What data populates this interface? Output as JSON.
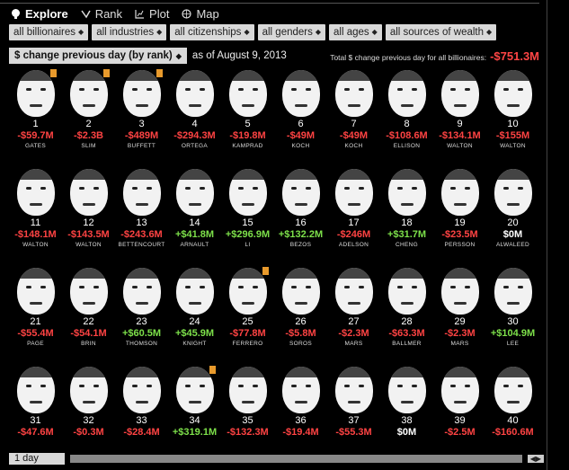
{
  "nav": {
    "items": [
      {
        "label": "Explore",
        "icon": "explore-icon",
        "active": true
      },
      {
        "label": "Rank",
        "icon": "rank-icon",
        "active": false
      },
      {
        "label": "Plot",
        "icon": "plot-icon",
        "active": false
      },
      {
        "label": "Map",
        "icon": "globe-icon",
        "active": false
      }
    ]
  },
  "filters": [
    "all billionaires",
    "all industries",
    "all citizenships",
    "all genders",
    "all ages",
    "all sources of wealth"
  ],
  "sort": {
    "label": "$ change previous day (by rank)",
    "asof": "as of August 9, 2013"
  },
  "total": {
    "label": "Total $ change previous day for all billionaires:",
    "value": "-$751.3M"
  },
  "colors": {
    "negative": "#ff4343",
    "positive": "#7de04a",
    "badge": "#e89a2c"
  },
  "billionaires": [
    {
      "rank": "1",
      "change": "-$59.7M",
      "name": "GATES",
      "badge": true
    },
    {
      "rank": "2",
      "change": "-$2.3B",
      "name": "SLIM",
      "badge": true
    },
    {
      "rank": "3",
      "change": "-$489M",
      "name": "BUFFETT",
      "badge": true
    },
    {
      "rank": "4",
      "change": "-$294.3M",
      "name": "ORTEGA",
      "badge": false
    },
    {
      "rank": "5",
      "change": "-$19.8M",
      "name": "KAMPRAD",
      "badge": false
    },
    {
      "rank": "6",
      "change": "-$49M",
      "name": "KOCH",
      "badge": false
    },
    {
      "rank": "7",
      "change": "-$49M",
      "name": "KOCH",
      "badge": false
    },
    {
      "rank": "8",
      "change": "-$108.6M",
      "name": "ELLISON",
      "badge": false
    },
    {
      "rank": "9",
      "change": "-$134.1M",
      "name": "WALTON",
      "badge": false
    },
    {
      "rank": "10",
      "change": "-$155M",
      "name": "WALTON",
      "badge": false
    },
    {
      "rank": "11",
      "change": "-$148.1M",
      "name": "WALTON",
      "badge": false
    },
    {
      "rank": "12",
      "change": "-$143.5M",
      "name": "WALTON",
      "badge": false
    },
    {
      "rank": "13",
      "change": "-$243.6M",
      "name": "BETTENCOURT",
      "badge": false
    },
    {
      "rank": "14",
      "change": "+$41.8M",
      "name": "ARNAULT",
      "badge": false
    },
    {
      "rank": "15",
      "change": "+$296.9M",
      "name": "LI",
      "badge": false
    },
    {
      "rank": "16",
      "change": "+$132.2M",
      "name": "BEZOS",
      "badge": false
    },
    {
      "rank": "17",
      "change": "-$246M",
      "name": "ADELSON",
      "badge": false
    },
    {
      "rank": "18",
      "change": "+$31.7M",
      "name": "CHENG",
      "badge": false
    },
    {
      "rank": "19",
      "change": "-$23.5M",
      "name": "PERSSON",
      "badge": false
    },
    {
      "rank": "20",
      "change": "$0M",
      "name": "ALWALEED",
      "badge": false
    },
    {
      "rank": "21",
      "change": "-$55.4M",
      "name": "PAGE",
      "badge": false
    },
    {
      "rank": "22",
      "change": "-$54.1M",
      "name": "BRIN",
      "badge": false
    },
    {
      "rank": "23",
      "change": "+$60.5M",
      "name": "THOMSON",
      "badge": false
    },
    {
      "rank": "24",
      "change": "+$45.9M",
      "name": "KNIGHT",
      "badge": false
    },
    {
      "rank": "25",
      "change": "-$77.8M",
      "name": "FERRERO",
      "badge": true
    },
    {
      "rank": "26",
      "change": "-$5.8M",
      "name": "SOROS",
      "badge": false
    },
    {
      "rank": "27",
      "change": "-$2.3M",
      "name": "MARS",
      "badge": false
    },
    {
      "rank": "28",
      "change": "-$63.3M",
      "name": "BALLMER",
      "badge": false
    },
    {
      "rank": "29",
      "change": "-$2.3M",
      "name": "MARS",
      "badge": false
    },
    {
      "rank": "30",
      "change": "+$104.9M",
      "name": "LEE",
      "badge": false
    },
    {
      "rank": "31",
      "change": "-$47.6M",
      "name": "",
      "badge": false
    },
    {
      "rank": "32",
      "change": "-$0.3M",
      "name": "",
      "badge": false
    },
    {
      "rank": "33",
      "change": "-$28.4M",
      "name": "",
      "badge": false
    },
    {
      "rank": "34",
      "change": "+$319.1M",
      "name": "",
      "badge": true
    },
    {
      "rank": "35",
      "change": "-$132.3M",
      "name": "",
      "badge": false
    },
    {
      "rank": "36",
      "change": "-$19.4M",
      "name": "",
      "badge": false
    },
    {
      "rank": "37",
      "change": "-$55.3M",
      "name": "",
      "badge": false
    },
    {
      "rank": "38",
      "change": "$0M",
      "name": "",
      "badge": false
    },
    {
      "rank": "39",
      "change": "-$2.5M",
      "name": "",
      "badge": false
    },
    {
      "rank": "40",
      "change": "-$160.6M",
      "name": "",
      "badge": false
    }
  ],
  "bottom": {
    "period": "1 day"
  }
}
